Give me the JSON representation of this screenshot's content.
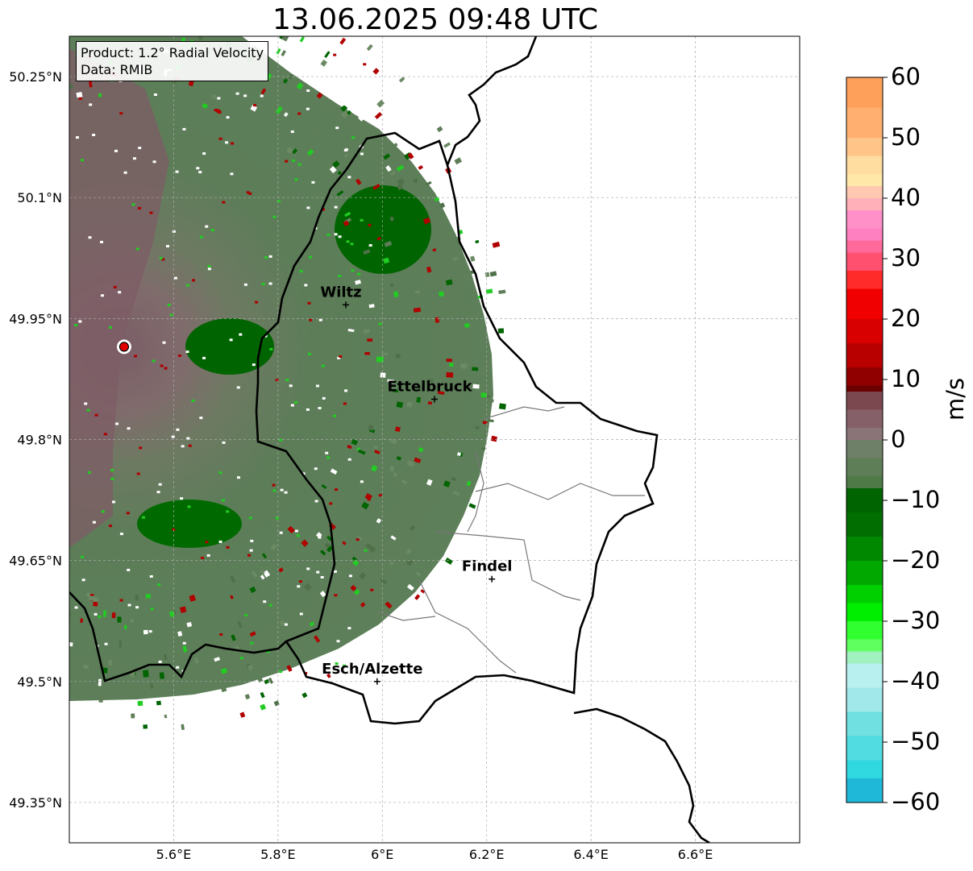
{
  "title": "13.06.2025 09:48 UTC",
  "info_box": {
    "product": "Product: 1.2° Radial Velocity",
    "data": "Data: RMIB"
  },
  "axes": {
    "lat_ticks": [
      "50.25°N",
      "50.1°N",
      "49.95°N",
      "49.8°N",
      "49.65°N",
      "49.5°N",
      "49.35°N"
    ],
    "lon_ticks": [
      "5.6°E",
      "5.8°E",
      "6°E",
      "6.2°E",
      "6.4°E",
      "6.6°E"
    ],
    "lon_range": [
      5.4,
      6.8
    ],
    "lat_range": [
      49.3,
      50.3
    ]
  },
  "cities": [
    {
      "name": "Wiltz",
      "lon": 5.93,
      "lat": 49.967
    },
    {
      "name": "Ettelbruck",
      "lon": 6.1,
      "lat": 49.85
    },
    {
      "name": "Findel",
      "lon": 6.21,
      "lat": 49.627
    },
    {
      "name": "Esch/Alzette",
      "lon": 5.99,
      "lat": 49.5
    }
  ],
  "radar_site": {
    "lon": 5.505,
    "lat": 49.915
  },
  "colorbar": {
    "label": "m/s",
    "min": -60,
    "max": 60,
    "tick_labels": [
      "60",
      "50",
      "40",
      "30",
      "20",
      "10",
      "0",
      "−10",
      "−20",
      "−30",
      "−40",
      "−50",
      "−60"
    ]
  },
  "colors": {
    "velocity_near_zero": "#5e7d58",
    "receding_low": "#7d5a62",
    "approaching_strong": "#006400",
    "approaching_bright": "#22cc22",
    "receding_red": "#b00000"
  }
}
